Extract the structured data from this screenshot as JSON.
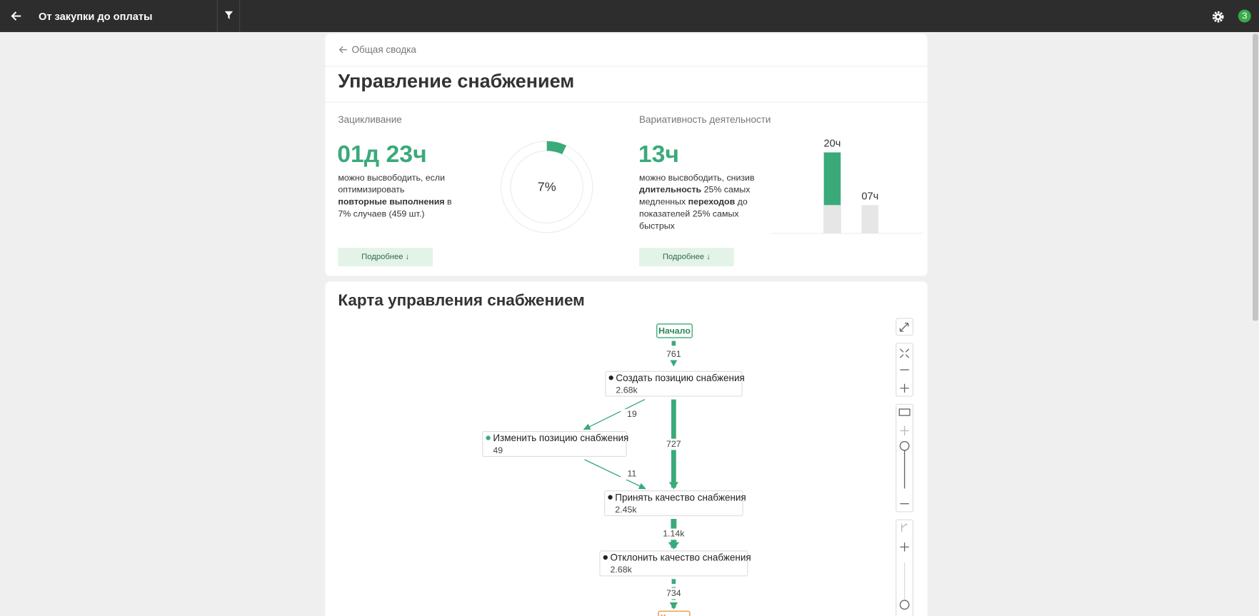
{
  "header": {
    "title": "От закупки до оплаты"
  },
  "breadcrumb": "Общая сводка",
  "page_title": "Управление снабжением",
  "looping": {
    "title": "Зацикливание",
    "metric": "01д 23ч",
    "description": [
      "можно высвободить, если оптимизировать",
      "повторные выполнения",
      "в 7% случаев (459 шт.)"
    ],
    "donut": {
      "value": 7,
      "label": "7%"
    },
    "button": "Подробнее ↓"
  },
  "variability": {
    "title": "Вариативность деятельности",
    "metric": "13ч",
    "description": [
      "можно высвободить, снизив",
      "длительность",
      "25% самых медленных",
      "переходов",
      "до показателей 25% самых быстрых"
    ],
    "bars": {
      "values": [
        20,
        7
      ],
      "value_labels": [
        "20ч",
        "07ч"
      ]
    },
    "button": "Подробнее ↓"
  },
  "map": {
    "title": "Карта управления снабжением",
    "start": "Начало",
    "end": "Конец",
    "nodes": [
      {
        "label": "Создать позицию снабжения",
        "count": "2.68k"
      },
      {
        "label": "Изменить позицию снабжения",
        "count": "49"
      },
      {
        "label": "Принять качество снабжения",
        "count": "2.45k"
      },
      {
        "label": "Отклонить качество снабжения",
        "count": "2.68k"
      }
    ],
    "edges": [
      "761",
      "19",
      "727",
      "11",
      "1.14k",
      "734"
    ]
  }
}
